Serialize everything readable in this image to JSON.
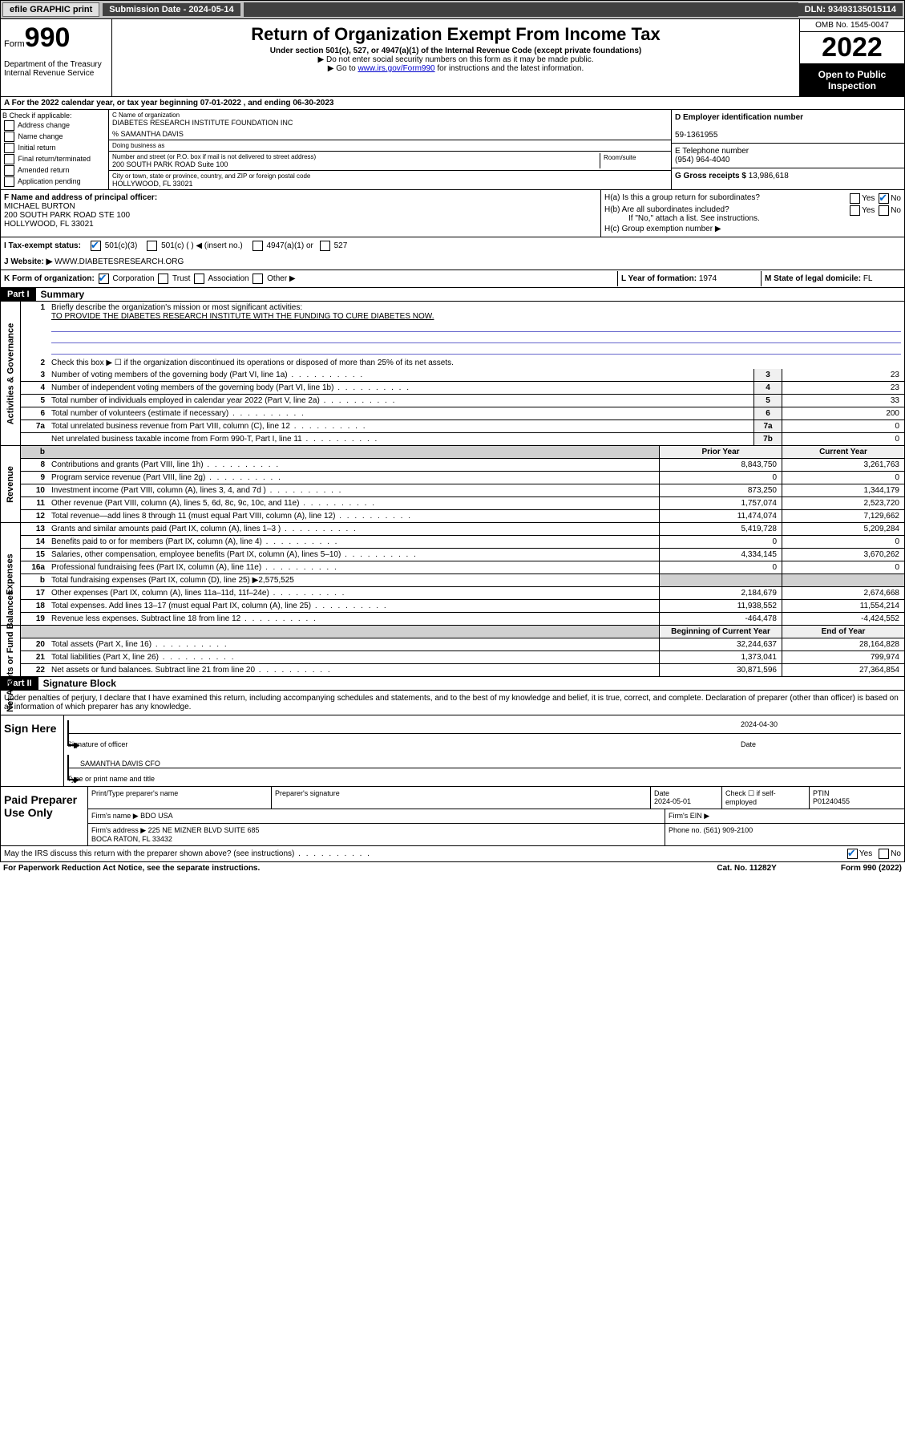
{
  "top": {
    "efile": "efile GRAPHIC print",
    "sub_date_label": "Submission Date - 2024-05-14",
    "dln": "DLN: 93493135015114"
  },
  "header": {
    "form_label": "Form",
    "form_num": "990",
    "title": "Return of Organization Exempt From Income Tax",
    "sub1": "Under section 501(c), 527, or 4947(a)(1) of the Internal Revenue Code (except private foundations)",
    "sub2": "▶ Do not enter social security numbers on this form as it may be made public.",
    "sub3_pre": "▶ Go to ",
    "sub3_link": "www.irs.gov/Form990",
    "sub3_post": " for instructions and the latest information.",
    "dept": "Department of the Treasury\nInternal Revenue Service",
    "omb": "OMB No. 1545-0047",
    "year": "2022",
    "inspection": "Open to Public Inspection"
  },
  "row_a": "A For the 2022 calendar year, or tax year beginning 07-01-2022   , and ending 06-30-2023",
  "col_b": {
    "title": "B Check if applicable:",
    "items": [
      "Address change",
      "Name change",
      "Initial return",
      "Final return/terminated",
      "Amended return",
      "Application pending"
    ]
  },
  "col_c": {
    "name_lbl": "C Name of organization",
    "name": "DIABETES RESEARCH INSTITUTE FOUNDATION INC",
    "care_of": "% SAMANTHA DAVIS",
    "dba_lbl": "Doing business as",
    "street_lbl": "Number and street (or P.O. box if mail is not delivered to street address)",
    "street": "200 SOUTH PARK ROAD Suite 100",
    "room_lbl": "Room/suite",
    "city_lbl": "City or town, state or province, country, and ZIP or foreign postal code",
    "city": "HOLLYWOOD, FL  33021"
  },
  "col_de": {
    "d_lbl": "D Employer identification number",
    "ein": "59-1361955",
    "e_lbl": "E Telephone number",
    "phone": "(954) 964-4040",
    "g_lbl": "G Gross receipts $",
    "gross": "13,986,618"
  },
  "fh": {
    "f_lbl": "F Name and address of principal officer:",
    "officer": "MICHAEL BURTON\n200 SOUTH PARK ROAD STE 100\nHOLLYWOOD, FL  33021",
    "ha": "H(a)  Is this a group return for subordinates?",
    "hb": "H(b)  Are all subordinates included?",
    "hb_note": "If \"No,\" attach a list. See instructions.",
    "hc": "H(c)  Group exemption number ▶"
  },
  "row_i": {
    "lbl": "I   Tax-exempt status:",
    "opts": [
      "501(c)(3)",
      "501(c) (  ) ◀ (insert no.)",
      "4947(a)(1) or",
      "527"
    ]
  },
  "row_j": {
    "lbl": "J   Website: ▶",
    "val": "WWW.DIABETESRESEARCH.ORG"
  },
  "row_k": {
    "lbl": "K Form of organization:",
    "opts": [
      "Corporation",
      "Trust",
      "Association",
      "Other ▶"
    ],
    "l_lbl": "L Year of formation:",
    "l_val": "1974",
    "m_lbl": "M State of legal domicile:",
    "m_val": "FL"
  },
  "part1": {
    "header": "Part I",
    "title": "Summary",
    "q1": "Briefly describe the organization's mission or most significant activities:",
    "mission": "TO PROVIDE THE DIABETES RESEARCH INSTITUTE WITH THE FUNDING TO CURE DIABETES NOW.",
    "q2": "Check this box ▶ ☐  if the organization discontinued its operations or disposed of more than 25% of its net assets.",
    "governance_rows": [
      {
        "n": "3",
        "desc": "Number of voting members of the governing body (Part VI, line 1a)",
        "box": "3",
        "val": "23"
      },
      {
        "n": "4",
        "desc": "Number of independent voting members of the governing body (Part VI, line 1b)",
        "box": "4",
        "val": "23"
      },
      {
        "n": "5",
        "desc": "Total number of individuals employed in calendar year 2022 (Part V, line 2a)",
        "box": "5",
        "val": "33"
      },
      {
        "n": "6",
        "desc": "Total number of volunteers (estimate if necessary)",
        "box": "6",
        "val": "200"
      },
      {
        "n": "7a",
        "desc": "Total unrelated business revenue from Part VIII, column (C), line 12",
        "box": "7a",
        "val": "0"
      },
      {
        "n": "",
        "desc": "Net unrelated business taxable income from Form 990-T, Part I, line 11",
        "box": "7b",
        "val": "0"
      }
    ],
    "col_headers": {
      "prior": "Prior Year",
      "current": "Current Year"
    },
    "revenue_rows": [
      {
        "n": "8",
        "desc": "Contributions and grants (Part VIII, line 1h)",
        "prior": "8,843,750",
        "current": "3,261,763"
      },
      {
        "n": "9",
        "desc": "Program service revenue (Part VIII, line 2g)",
        "prior": "0",
        "current": "0"
      },
      {
        "n": "10",
        "desc": "Investment income (Part VIII, column (A), lines 3, 4, and 7d )",
        "prior": "873,250",
        "current": "1,344,179"
      },
      {
        "n": "11",
        "desc": "Other revenue (Part VIII, column (A), lines 5, 6d, 8c, 9c, 10c, and 11e)",
        "prior": "1,757,074",
        "current": "2,523,720"
      },
      {
        "n": "12",
        "desc": "Total revenue—add lines 8 through 11 (must equal Part VIII, column (A), line 12)",
        "prior": "11,474,074",
        "current": "7,129,662"
      }
    ],
    "expense_rows": [
      {
        "n": "13",
        "desc": "Grants and similar amounts paid (Part IX, column (A), lines 1–3 )",
        "prior": "5,419,728",
        "current": "5,209,284"
      },
      {
        "n": "14",
        "desc": "Benefits paid to or for members (Part IX, column (A), line 4)",
        "prior": "0",
        "current": "0"
      },
      {
        "n": "15",
        "desc": "Salaries, other compensation, employee benefits (Part IX, column (A), lines 5–10)",
        "prior": "4,334,145",
        "current": "3,670,262"
      },
      {
        "n": "16a",
        "desc": "Professional fundraising fees (Part IX, column (A), line 11e)",
        "prior": "0",
        "current": "0"
      },
      {
        "n": "b",
        "desc": "Total fundraising expenses (Part IX, column (D), line 25) ▶2,575,525",
        "prior": "",
        "current": "",
        "shade": true
      },
      {
        "n": "17",
        "desc": "Other expenses (Part IX, column (A), lines 11a–11d, 11f–24e)",
        "prior": "2,184,679",
        "current": "2,674,668"
      },
      {
        "n": "18",
        "desc": "Total expenses. Add lines 13–17 (must equal Part IX, column (A), line 25)",
        "prior": "11,938,552",
        "current": "11,554,214"
      },
      {
        "n": "19",
        "desc": "Revenue less expenses. Subtract line 18 from line 12",
        "prior": "-464,478",
        "current": "-4,424,552"
      }
    ],
    "net_headers": {
      "begin": "Beginning of Current Year",
      "end": "End of Year"
    },
    "net_rows": [
      {
        "n": "20",
        "desc": "Total assets (Part X, line 16)",
        "prior": "32,244,637",
        "current": "28,164,828"
      },
      {
        "n": "21",
        "desc": "Total liabilities (Part X, line 26)",
        "prior": "1,373,041",
        "current": "799,974"
      },
      {
        "n": "22",
        "desc": "Net assets or fund balances. Subtract line 21 from line 20",
        "prior": "30,871,596",
        "current": "27,364,854"
      }
    ]
  },
  "part2": {
    "header": "Part II",
    "title": "Signature Block",
    "declaration": "Under penalties of perjury, I declare that I have examined this return, including accompanying schedules and statements, and to the best of my knowledge and belief, it is true, correct, and complete. Declaration of preparer (other than officer) is based on all information of which preparer has any knowledge.",
    "sign_here": "Sign Here",
    "sig_officer_lbl": "Signature of officer",
    "sig_date": "2024-04-30",
    "sig_date_lbl": "Date",
    "officer_name": "SAMANTHA DAVIS CFO",
    "officer_name_lbl": "Type or print name and title",
    "paid_lbl": "Paid Preparer Use Only",
    "prep_name_lbl": "Print/Type preparer's name",
    "prep_sig_lbl": "Preparer's signature",
    "prep_date_lbl": "Date",
    "prep_date": "2024-05-01",
    "prep_check_lbl": "Check ☐ if self-employed",
    "ptin_lbl": "PTIN",
    "ptin": "P01240455",
    "firm_name_lbl": "Firm's name   ▶",
    "firm_name": "BDO USA",
    "firm_ein_lbl": "Firm's EIN ▶",
    "firm_addr_lbl": "Firm's address ▶",
    "firm_addr": "225 NE MIZNER BLVD SUITE 685\nBOCA RATON, FL  33432",
    "firm_phone_lbl": "Phone no.",
    "firm_phone": "(561) 909-2100",
    "discuss": "May the IRS discuss this return with the preparer shown above? (see instructions)",
    "paperwork": "For Paperwork Reduction Act Notice, see the separate instructions.",
    "cat": "Cat. No. 11282Y",
    "form_foot": "Form 990 (2022)"
  },
  "side_labels": {
    "gov": "Activities & Governance",
    "rev": "Revenue",
    "exp": "Expenses",
    "net": "Net Assets or Fund Balances"
  }
}
